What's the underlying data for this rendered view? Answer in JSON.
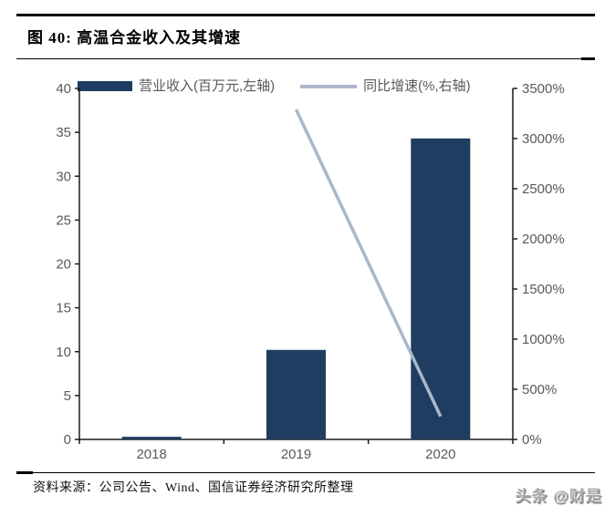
{
  "figure": {
    "title": "图 40:  高温合金收入及其增速",
    "source": "资料来源：公司公告、Wind、国信证券经济研究所整理",
    "watermark": "头条 @财是"
  },
  "colors": {
    "bar": "#1f3c61",
    "line": "#a9b8c9",
    "axis_line": "#1a1a1a",
    "tick_text": "#595959",
    "rule": "#000000"
  },
  "chart_data": {
    "type": "bar",
    "title": "高温合金收入及其增速",
    "categories": [
      "2018",
      "2019",
      "2020"
    ],
    "series": [
      {
        "name": "营业收入(百万元,左轴)",
        "type": "bar",
        "axis": "left",
        "color": "#1f3c61",
        "values": [
          0.3,
          10.2,
          34.3
        ]
      },
      {
        "name": "同比增速(%,右轴)",
        "type": "line",
        "axis": "right",
        "color": "#a9b8c9",
        "values": [
          null,
          3290,
          230
        ]
      }
    ],
    "left_axis": {
      "min": 0,
      "max": 40,
      "step": 5,
      "suffix": ""
    },
    "right_axis": {
      "min": 0,
      "max": 3500,
      "step": 500,
      "suffix": "%"
    },
    "legend_position": "top",
    "grid": false,
    "xlabel": "",
    "ylabel_left": "百万元",
    "ylabel_right": "%"
  }
}
